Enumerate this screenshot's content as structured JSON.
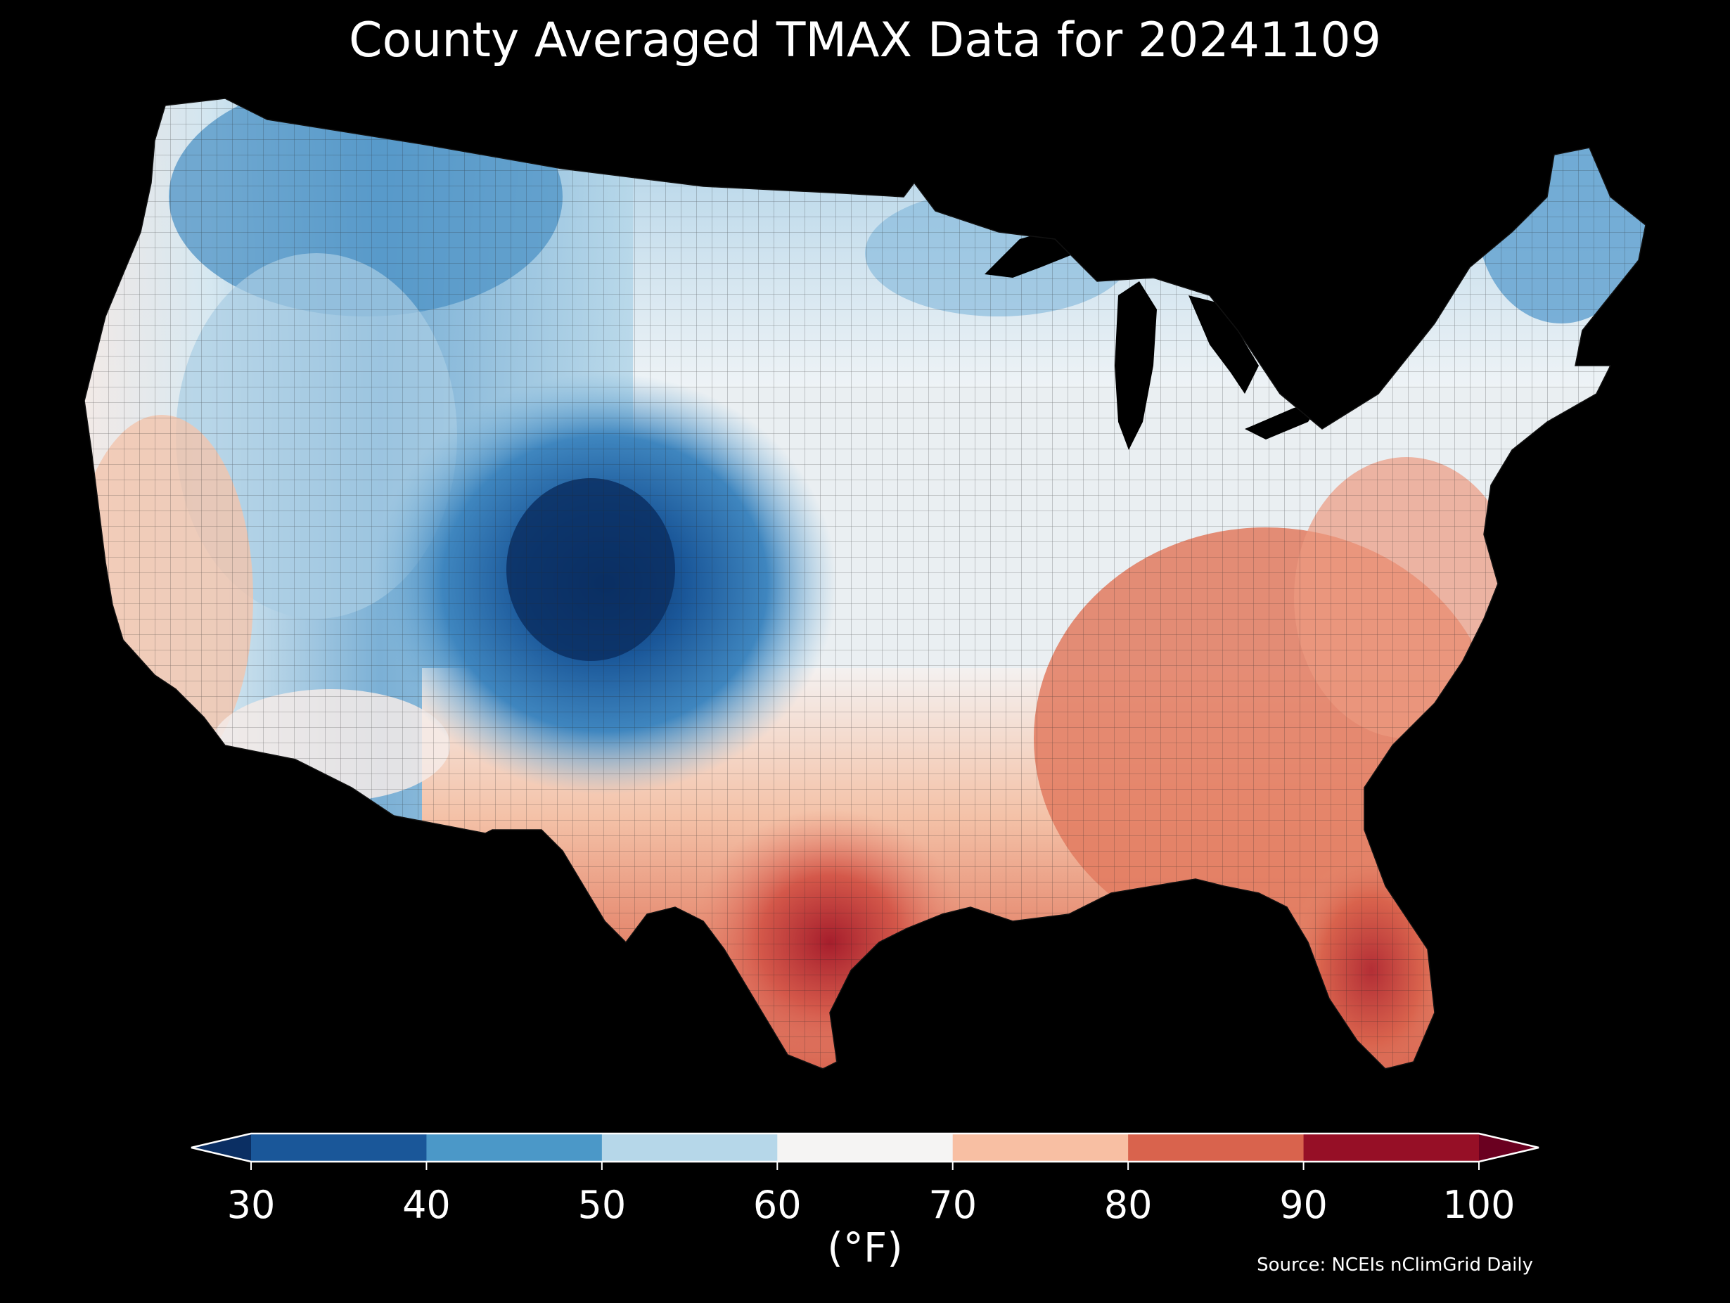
{
  "map": {
    "title": "County Averaged TMAX Data for 20241109",
    "units": "(°F)",
    "source": "Source: NCEIs nClimGrid Daily",
    "region": "contiguous-united-states-counties",
    "variable": "TMAX",
    "background_color": "#000000",
    "colorbar": {
      "ticks": [
        "30",
        "40",
        "50",
        "60",
        "70",
        "80",
        "90",
        "100"
      ],
      "bins": [
        {
          "min": 30,
          "max": 40,
          "color": "#1a5799"
        },
        {
          "min": 40,
          "max": 50,
          "color": "#4b98c8"
        },
        {
          "min": 50,
          "max": 60,
          "color": "#b6d7e9"
        },
        {
          "min": 60,
          "max": 70,
          "color": "#f5f4f3"
        },
        {
          "min": 70,
          "max": 80,
          "color": "#f8bfa3"
        },
        {
          "min": 80,
          "max": 90,
          "color": "#d9634d"
        },
        {
          "min": 90,
          "max": 100,
          "color": "#960f26"
        }
      ],
      "under_color": "#0b2f63",
      "over_color": "#6a0020",
      "extend": "both"
    },
    "features": [
      {
        "name": "great-lakes",
        "fill": "#000000"
      },
      {
        "name": "coldest-core-colorado-utah",
        "fill": "#0b2f63"
      }
    ]
  }
}
